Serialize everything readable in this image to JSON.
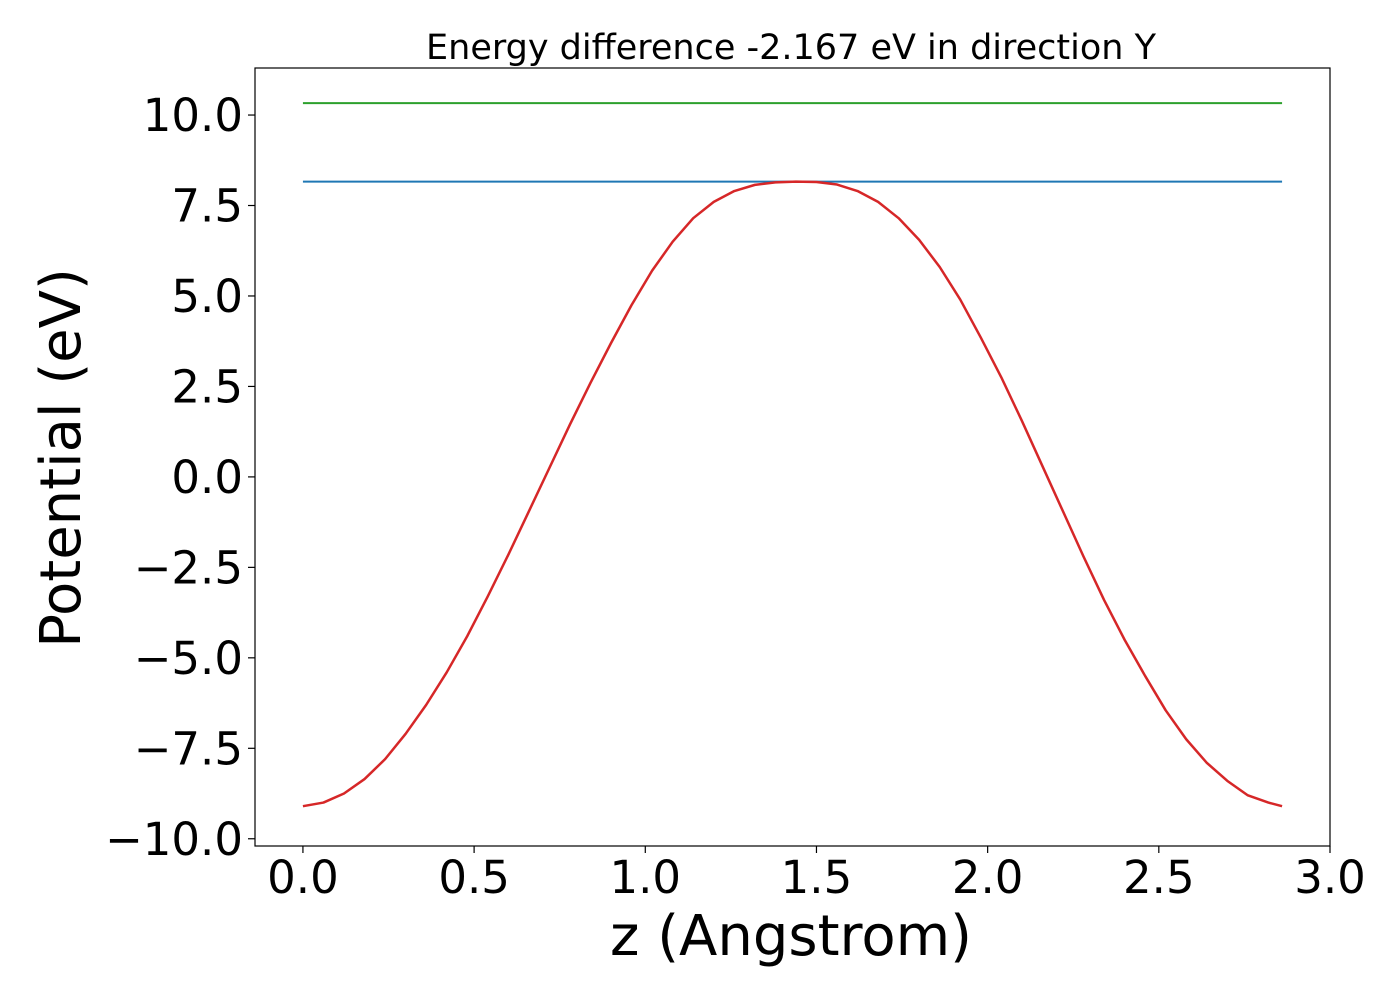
{
  "chart_data": {
    "type": "line",
    "title": "Energy difference -2.167 eV in direction Y",
    "xlabel": "z (Angstrom)",
    "ylabel": "Potential (eV)",
    "xlim": [
      -0.14,
      3.0
    ],
    "ylim": [
      -10.2,
      11.3
    ],
    "xticks": [
      0.0,
      0.5,
      1.0,
      1.5,
      2.0,
      2.5,
      3.0
    ],
    "xtick_labels": [
      "0.0",
      "0.5",
      "1.0",
      "1.5",
      "2.0",
      "2.5",
      "3.0"
    ],
    "yticks": [
      10.0,
      7.5,
      5.0,
      2.5,
      0.0,
      -2.5,
      -5.0,
      -7.5,
      -10.0
    ],
    "ytick_labels": [
      "10.0",
      "7.5",
      "5.0",
      "2.5",
      "0.0",
      "−2.5",
      "−5.0",
      "−7.5",
      "−10.0"
    ],
    "grid": false,
    "legend": false,
    "series": [
      {
        "color": "#2ca02c",
        "x": [
          0.0,
          2.86
        ],
        "y": [
          10.33,
          10.33
        ]
      },
      {
        "color": "#1f77b4",
        "x": [
          0.0,
          2.86
        ],
        "y": [
          8.16,
          8.16
        ]
      },
      {
        "color": "#d62728",
        "x": [
          0.0,
          0.06,
          0.12,
          0.18,
          0.24,
          0.3,
          0.36,
          0.42,
          0.48,
          0.54,
          0.6,
          0.66,
          0.72,
          0.78,
          0.84,
          0.9,
          0.96,
          1.02,
          1.08,
          1.14,
          1.2,
          1.26,
          1.32,
          1.38,
          1.44,
          1.5,
          1.56,
          1.62,
          1.68,
          1.74,
          1.8,
          1.86,
          1.92,
          1.98,
          2.04,
          2.1,
          2.16,
          2.22,
          2.28,
          2.34,
          2.4,
          2.46,
          2.52,
          2.58,
          2.64,
          2.7,
          2.76,
          2.82,
          2.86
        ],
        "y": [
          -9.1,
          -9.0,
          -8.75,
          -8.35,
          -7.8,
          -7.1,
          -6.3,
          -5.4,
          -4.4,
          -3.3,
          -2.15,
          -0.95,
          0.25,
          1.45,
          2.6,
          3.7,
          4.75,
          5.7,
          6.5,
          7.15,
          7.6,
          7.9,
          8.07,
          8.14,
          8.16,
          8.15,
          8.08,
          7.9,
          7.6,
          7.15,
          6.55,
          5.8,
          4.9,
          3.85,
          2.75,
          1.55,
          0.3,
          -0.95,
          -2.2,
          -3.4,
          -4.5,
          -5.5,
          -6.45,
          -7.25,
          -7.9,
          -8.4,
          -8.8,
          -9.0,
          -9.1
        ]
      }
    ]
  }
}
